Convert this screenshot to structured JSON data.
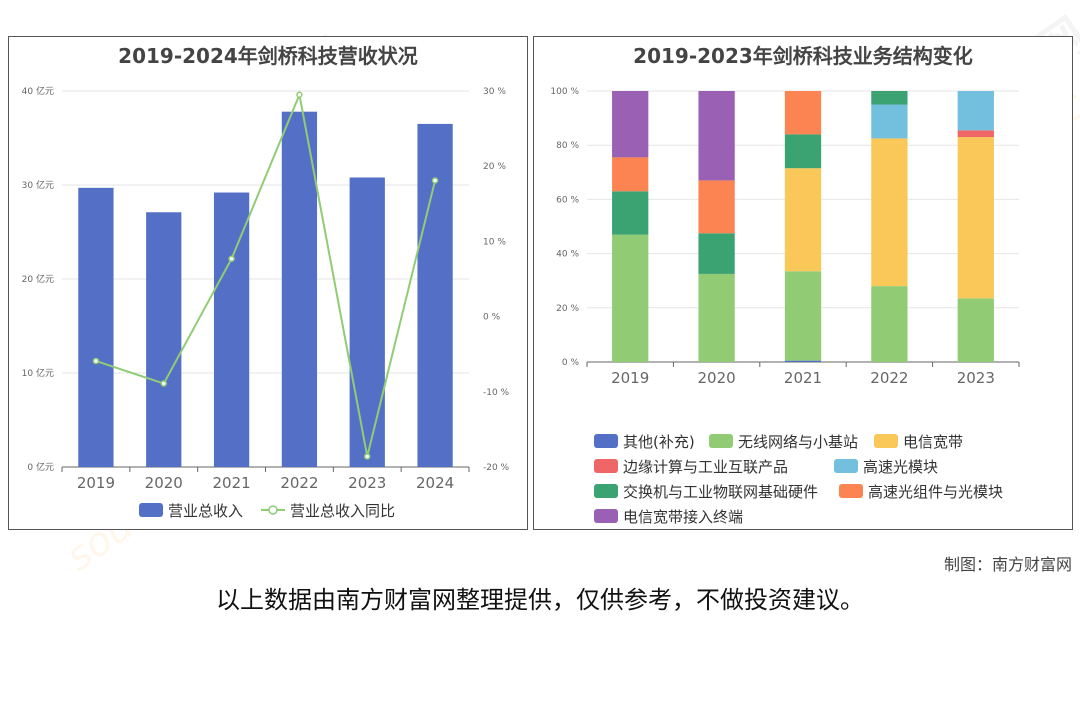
{
  "credit": "制图：南方财富网",
  "disclaimer": "以上数据由南方财富网整理提供，仅供参考，不做投资建议。",
  "watermark": {
    "cn": "南方财富网",
    "en": "southmoney.com"
  },
  "chart_data": [
    {
      "type": "bar",
      "title": "2019-2024年剑桥科技营收状况",
      "categories": [
        "2019",
        "2020",
        "2021",
        "2022",
        "2023",
        "2024"
      ],
      "y_left": {
        "ticks": [
          "0 亿元",
          "10 亿元",
          "20 亿元",
          "30 亿元",
          "40 亿元"
        ],
        "range": [
          0,
          40
        ]
      },
      "y_right": {
        "ticks": [
          "-20 %",
          "-10 %",
          "0 %",
          "10 %",
          "20 %",
          "30 %"
        ],
        "range": [
          -20,
          30
        ]
      },
      "grid": true,
      "legend_position": "bottom",
      "series": [
        {
          "name": "营业总收入",
          "type": "bar",
          "axis": "left",
          "color": "#5470c6",
          "values": [
            29.7,
            27.1,
            29.2,
            37.8,
            30.8,
            36.5
          ]
        },
        {
          "name": "营业总收入同比",
          "type": "line",
          "axis": "right",
          "color": "#91cc75",
          "values": [
            -5.9,
            -8.9,
            7.7,
            29.5,
            -18.6,
            18.1
          ]
        }
      ]
    },
    {
      "type": "bar",
      "stacked": true,
      "title": "2019-2023年剑桥科技业务结构变化",
      "categories": [
        "2019",
        "2020",
        "2021",
        "2022",
        "2023"
      ],
      "y": {
        "ticks": [
          "0 %",
          "20 %",
          "40 %",
          "60 %",
          "80 %",
          "100 %"
        ],
        "range": [
          0,
          100
        ]
      },
      "grid": true,
      "legend_position": "bottom",
      "series": [
        {
          "name": "其他(补充)",
          "color": "#5470c6",
          "values": [
            0,
            0,
            0.5,
            0,
            0
          ]
        },
        {
          "name": "无线网络与小基站",
          "color": "#91cc75",
          "values": [
            47,
            32.5,
            33,
            28,
            23.5
          ]
        },
        {
          "name": "电信宽带",
          "color": "#fac858",
          "values": [
            0,
            0,
            38,
            54.5,
            59.5
          ]
        },
        {
          "name": "边缘计算与工业互联产品",
          "color": "#ee6666",
          "values": [
            0,
            0,
            0,
            0,
            2.5
          ]
        },
        {
          "name": "高速光模块",
          "color": "#73c0de",
          "values": [
            0,
            0,
            0,
            12.5,
            14.5
          ]
        },
        {
          "name": "交换机与工业物联网基础硬件",
          "color": "#3ba272",
          "values": [
            16,
            15,
            12.5,
            5,
            0
          ]
        },
        {
          "name": "高速光组件与光模块",
          "color": "#fc8452",
          "values": [
            12.5,
            19.5,
            16,
            0,
            0
          ]
        },
        {
          "name": "电信宽带接入终端",
          "color": "#9a60b4",
          "values": [
            24.5,
            33,
            0,
            0,
            0
          ]
        }
      ]
    }
  ]
}
